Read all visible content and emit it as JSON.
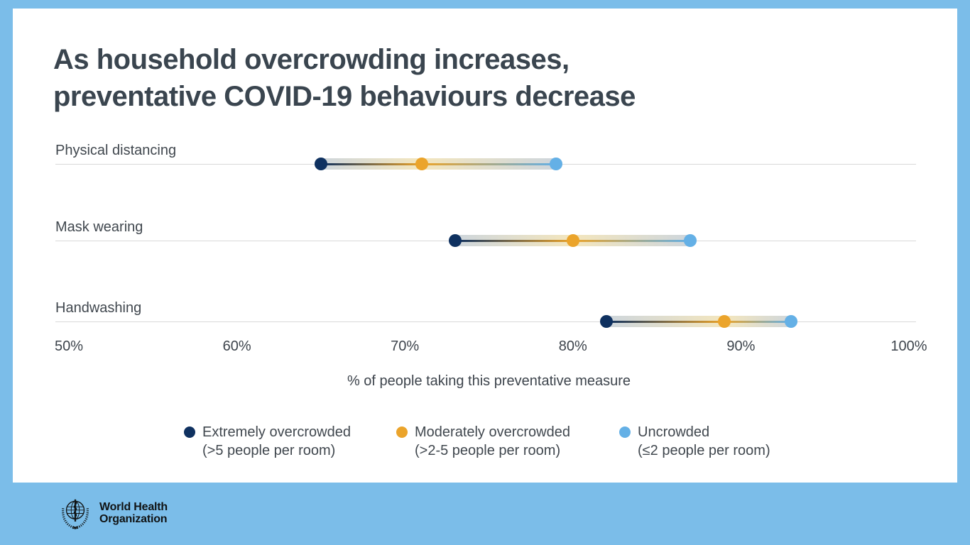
{
  "title": {
    "line1": "As household overcrowding increases,",
    "line2": "preventative COVID-19 behaviours decrease"
  },
  "chart_data": {
    "type": "dumbbell",
    "categories": [
      "Physical distancing",
      "Mask wearing",
      "Handwashing"
    ],
    "series": [
      {
        "name": "Extremely overcrowded",
        "detail": "(>5 people per room)",
        "color": "#0f3160",
        "values": [
          65,
          73,
          82
        ]
      },
      {
        "name": "Moderately overcrowded",
        "detail": "(>2-5 people per room)",
        "color": "#eba42b",
        "values": [
          71,
          80,
          89
        ]
      },
      {
        "name": "Uncrowded",
        "detail": "(≤2 people per room)",
        "color": "#64b0e6",
        "values": [
          79,
          87,
          93
        ]
      }
    ],
    "xlabel": "% of people taking this preventative measure",
    "xlim": [
      50,
      100
    ],
    "x_ticks": [
      "50%",
      "60%",
      "70%",
      "80%",
      "90%",
      "100%"
    ],
    "grid": true,
    "legend_position": "bottom"
  },
  "footer": {
    "logo": "who-emblem",
    "org_line1": "World Health",
    "org_line2": "Organization"
  },
  "colors": {
    "frame": "#7bbde9",
    "card": "#ffffff",
    "title_text": "#3a454f",
    "body_text": "#40474e",
    "gridline": "#d9d9d9",
    "band_cool": "#c6d0da",
    "band_warm": "#f2e3b6"
  }
}
